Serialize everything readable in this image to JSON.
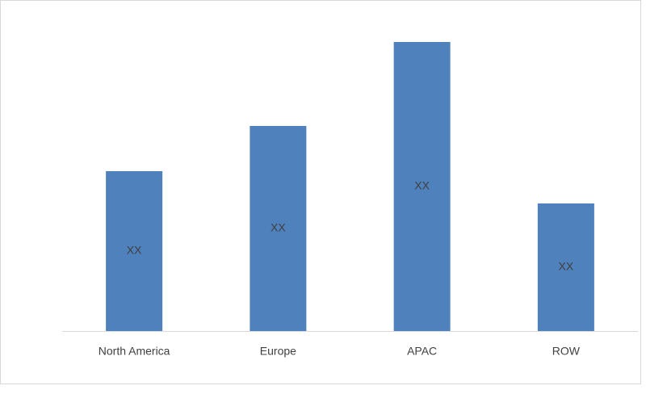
{
  "chart_data": {
    "type": "bar",
    "categories": [
      "North America",
      "Europe",
      "APAC",
      "ROW"
    ],
    "values": [
      198,
      254,
      358,
      158
    ],
    "value_labels": [
      "XX",
      "XX",
      "XX",
      "XX"
    ],
    "color": "#4f81bd",
    "ylim": [
      0,
      380
    ]
  }
}
